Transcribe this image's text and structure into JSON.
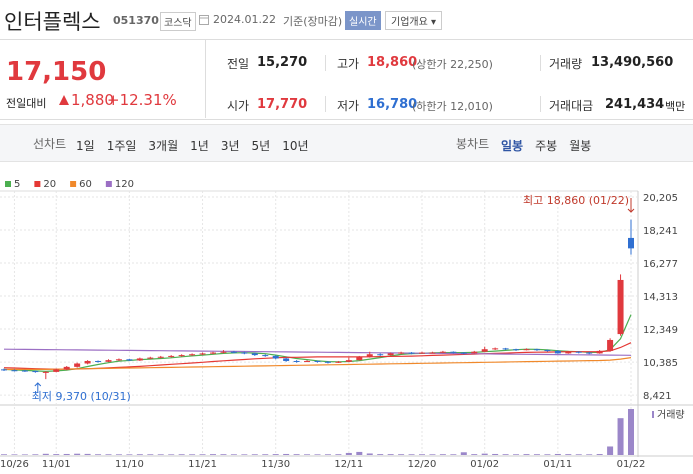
{
  "header": {
    "name": "인터플렉스",
    "code": "051370",
    "market": "코스닥",
    "date": "2024.01.22",
    "basis": "기준(장마감)",
    "realtime": "실시간",
    "company": "기업개요"
  },
  "price": {
    "current": "17,150",
    "change_label": "전일대비",
    "change": "1,880",
    "rate": "+12.31%"
  },
  "stats": [
    {
      "label": "전일",
      "value": "15,270"
    },
    {
      "label": "고가",
      "value": "18,860",
      "note": "(상한가 22,250)"
    },
    {
      "label": "거래량",
      "value": "13,490,560"
    },
    {
      "label": "시가",
      "value": "17,770"
    },
    {
      "label": "저가",
      "value": "16,780",
      "note": "(하한가 12,010)"
    },
    {
      "label": "거래대금",
      "value": "241,434",
      "unit": "백만"
    }
  ],
  "toolbar": {
    "line_chart": "선차트",
    "periods": [
      "1일",
      "1주일",
      "3개월",
      "1년",
      "3년",
      "5년",
      "10년"
    ],
    "candle_chart": "봉차트",
    "candle_periods": [
      "일봉",
      "주봉",
      "월봉"
    ]
  },
  "chart": {
    "type": "candlestick",
    "up_color": "#e0393e",
    "down_color": "#2f6fd1",
    "dates": [
      null,
      "10/26",
      null,
      null,
      null,
      "11/01",
      null,
      null,
      null,
      null,
      null,
      null,
      "11/10",
      null,
      null,
      null,
      null,
      null,
      null,
      "11/21",
      null,
      null,
      null,
      null,
      null,
      null,
      "11/30",
      null,
      null,
      null,
      null,
      null,
      null,
      "12/11",
      null,
      null,
      null,
      null,
      null,
      null,
      "12/20",
      null,
      null,
      null,
      null,
      null,
      "01/02",
      null,
      null,
      null,
      null,
      null,
      null,
      "01/11",
      null,
      null,
      null,
      null,
      null,
      null,
      "01/22"
    ],
    "candles": [
      [
        9950,
        10000,
        9850,
        9900
      ],
      [
        9900,
        9950,
        9830,
        9880
      ],
      [
        9880,
        9920,
        9800,
        9850
      ],
      [
        9850,
        9880,
        9750,
        9800
      ],
      [
        9800,
        9850,
        9370,
        9800
      ],
      [
        9800,
        10000,
        9780,
        9950
      ],
      [
        9950,
        10150,
        9900,
        10100
      ],
      [
        10100,
        10350,
        10050,
        10300
      ],
      [
        10300,
        10500,
        10250,
        10450
      ],
      [
        10450,
        10480,
        10350,
        10400
      ],
      [
        10400,
        10550,
        10380,
        10500
      ],
      [
        10500,
        10600,
        10450,
        10550
      ],
      [
        10550,
        10580,
        10450,
        10480
      ],
      [
        10480,
        10650,
        10450,
        10600
      ],
      [
        10600,
        10700,
        10550,
        10650
      ],
      [
        10650,
        10750,
        10600,
        10700
      ],
      [
        10700,
        10800,
        10650,
        10750
      ],
      [
        10750,
        10850,
        10700,
        10800
      ],
      [
        10800,
        10900,
        10750,
        10850
      ],
      [
        10850,
        10950,
        10800,
        10900
      ],
      [
        10900,
        11000,
        10850,
        10950
      ],
      [
        10950,
        11100,
        10900,
        11000
      ],
      [
        11000,
        11050,
        10900,
        10950
      ],
      [
        10950,
        11000,
        10850,
        10900
      ],
      [
        10900,
        10950,
        10750,
        10800
      ],
      [
        10800,
        10850,
        10700,
        10750
      ],
      [
        10750,
        10800,
        10550,
        10600
      ],
      [
        10600,
        10650,
        10400,
        10450
      ],
      [
        10450,
        10500,
        10350,
        10400
      ],
      [
        10400,
        10500,
        10380,
        10450
      ],
      [
        10450,
        10480,
        10350,
        10400
      ],
      [
        10400,
        10450,
        10300,
        10350
      ],
      [
        10350,
        10450,
        10330,
        10400
      ],
      [
        10400,
        10650,
        10380,
        10500
      ],
      [
        10500,
        10750,
        10480,
        10700
      ],
      [
        10700,
        11000,
        10650,
        10850
      ],
      [
        10850,
        10900,
        10750,
        10800
      ],
      [
        10800,
        10950,
        10780,
        10900
      ],
      [
        10900,
        11000,
        10850,
        10950
      ],
      [
        10950,
        10980,
        10850,
        10900
      ],
      [
        10900,
        11000,
        10880,
        10950
      ],
      [
        10950,
        11000,
        10900,
        10950
      ],
      [
        10950,
        11050,
        10920,
        11000
      ],
      [
        11000,
        11020,
        10900,
        10950
      ],
      [
        10950,
        10980,
        10850,
        10900
      ],
      [
        10900,
        11050,
        10880,
        11000
      ],
      [
        11000,
        11300,
        10980,
        11150
      ],
      [
        11150,
        11250,
        11100,
        11200
      ],
      [
        11200,
        11230,
        11100,
        11150
      ],
      [
        11150,
        11180,
        11050,
        11100
      ],
      [
        11100,
        11200,
        11080,
        11150
      ],
      [
        11150,
        11180,
        11050,
        11100
      ],
      [
        11100,
        11130,
        11000,
        11050
      ],
      [
        11050,
        11100,
        10880,
        10900
      ],
      [
        10900,
        11050,
        10880,
        11000
      ],
      [
        11000,
        11030,
        10900,
        10950
      ],
      [
        10950,
        11000,
        10850,
        10900
      ],
      [
        10900,
        11100,
        10880,
        11050
      ],
      [
        11050,
        11800,
        11000,
        11700
      ],
      [
        12050,
        15600,
        11950,
        15270
      ],
      [
        17770,
        18860,
        16780,
        17150
      ]
    ],
    "ma": [
      {
        "name": "5",
        "color": "#4caf50",
        "values": [
          9950,
          9920,
          9890,
          9860,
          9830,
          9860,
          9900,
          9990,
          10120,
          10240,
          10350,
          10440,
          10480,
          10530,
          10560,
          10600,
          10640,
          10700,
          10750,
          10800,
          10850,
          10900,
          10930,
          10940,
          10920,
          10880,
          10800,
          10700,
          10600,
          10530,
          10460,
          10410,
          10400,
          10420,
          10470,
          10560,
          10650,
          10750,
          10840,
          10880,
          10900,
          10930,
          10950,
          10950,
          10950,
          10960,
          11000,
          11040,
          11080,
          11120,
          11150,
          11140,
          11110,
          11060,
          11020,
          11000,
          10960,
          10960,
          11120,
          11770,
          13210
        ]
      },
      {
        "name": "20",
        "color": "#e53935",
        "values": [
          10050,
          10030,
          10010,
          9990,
          9970,
          9960,
          9960,
          9970,
          9990,
          10010,
          10040,
          10070,
          10100,
          10130,
          10170,
          10210,
          10250,
          10290,
          10330,
          10370,
          10420,
          10460,
          10500,
          10540,
          10580,
          10610,
          10640,
          10660,
          10670,
          10680,
          10690,
          10690,
          10690,
          10690,
          10690,
          10700,
          10710,
          10720,
          10730,
          10740,
          10760,
          10780,
          10800,
          10820,
          10840,
          10860,
          10880,
          10900,
          10920,
          10940,
          10960,
          10970,
          10980,
          10990,
          11000,
          11000,
          11000,
          11010,
          11050,
          11250,
          11540
        ]
      },
      {
        "name": "60",
        "color": "#f0892b",
        "values": [
          9950,
          9950,
          9950,
          9950,
          9950,
          9960,
          9970,
          9980,
          9990,
          10000,
          10010,
          10020,
          10030,
          10040,
          10050,
          10060,
          10070,
          10080,
          10090,
          10100,
          10110,
          10120,
          10130,
          10140,
          10150,
          10160,
          10170,
          10180,
          10190,
          10200,
          10210,
          10220,
          10230,
          10240,
          10250,
          10260,
          10270,
          10280,
          10290,
          10300,
          10310,
          10320,
          10330,
          10340,
          10350,
          10360,
          10370,
          10380,
          10390,
          10400,
          10410,
          10420,
          10430,
          10440,
          10450,
          10460,
          10470,
          10480,
          10500,
          10560,
          10650
        ]
      },
      {
        "name": "120",
        "color": "#9b6fc4",
        "values": [
          11150,
          11144,
          11138,
          11132,
          11126,
          11120,
          11114,
          11108,
          11102,
          11096,
          11090,
          11084,
          11078,
          11072,
          11066,
          11060,
          11054,
          11048,
          11042,
          11036,
          11030,
          11024,
          11018,
          11012,
          11006,
          11000,
          10994,
          10988,
          10982,
          10976,
          10970,
          10964,
          10958,
          10952,
          10946,
          10940,
          10934,
          10928,
          10922,
          10916,
          10910,
          10904,
          10898,
          10892,
          10886,
          10880,
          10874,
          10868,
          10862,
          10856,
          10850,
          10844,
          10838,
          10832,
          10826,
          10820,
          10814,
          10808,
          10802,
          10796,
          10790
        ]
      }
    ],
    "volume_label": "거래량",
    "volume_color": "#9b87c9",
    "volume": [
      210000,
      180000,
      170000,
      200000,
      350000,
      260000,
      300000,
      380000,
      320000,
      220000,
      210000,
      200000,
      190000,
      230000,
      210000,
      200000,
      190000,
      220000,
      200000,
      210000,
      250000,
      230000,
      200000,
      190000,
      210000,
      220000,
      260000,
      300000,
      240000,
      200000,
      190000,
      210000,
      230000,
      600000,
      900000,
      450000,
      260000,
      250000,
      230000,
      210000,
      220000,
      200000,
      230000,
      210000,
      800000,
      250000,
      400000,
      300000,
      230000,
      210000,
      260000,
      230000,
      210000,
      300000,
      250000,
      210000,
      200000,
      280000,
      2500000,
      10800000,
      13490560
    ],
    "ylim": [
      7950,
      20800
    ],
    "yticks": [
      {
        "value": 8421,
        "label": "8,421"
      },
      {
        "value": 10385,
        "label": "10,385"
      },
      {
        "value": 12349,
        "label": "12,349"
      },
      {
        "value": 14313,
        "label": "14,313"
      },
      {
        "value": 16277,
        "label": "16,277"
      },
      {
        "value": 18241,
        "label": "18,241"
      },
      {
        "value": 20205,
        "label": "20,205"
      }
    ],
    "high_label": "최고 18,860 (01/22)",
    "low_label": "최저 9,370 (10/31)"
  }
}
